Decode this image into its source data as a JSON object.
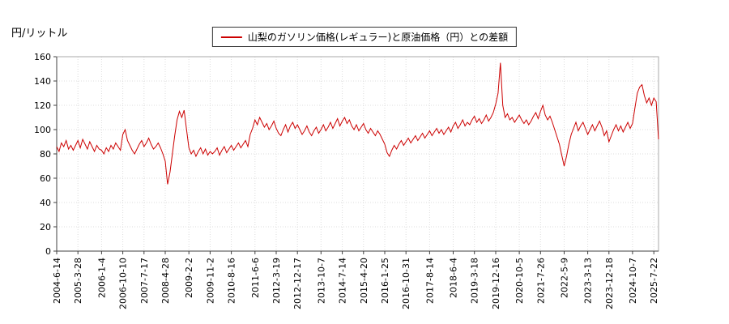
{
  "header": {
    "y_unit_label": "円/リットル",
    "legend_label": "山梨のガソリン価格(レギュラー)と原油価格（円）との差額",
    "legend_line_color": "#cc0000"
  },
  "chart_data": {
    "type": "line",
    "title": "山梨のガソリン価格(レギュラー)と原油価格（円）との差額",
    "ylabel": "円/リットル",
    "xlabel": "",
    "ylim": [
      0,
      160
    ],
    "yticks": [
      0,
      20,
      40,
      60,
      80,
      100,
      120,
      140,
      160
    ],
    "grid": true,
    "legend_position": "top-center",
    "x_ticks": [
      {
        "label": "2004-6-14",
        "index": 0
      },
      {
        "label": "2005-3-28",
        "index": 9
      },
      {
        "label": "2006-1-4",
        "index": 19
      },
      {
        "label": "2006-10-10",
        "index": 28
      },
      {
        "label": "2007-7-17",
        "index": 37
      },
      {
        "label": "2008-4-28",
        "index": 46
      },
      {
        "label": "2009-2-2",
        "index": 56
      },
      {
        "label": "2009-11-2",
        "index": 65
      },
      {
        "label": "2010-8-16",
        "index": 74
      },
      {
        "label": "2011-6-6",
        "index": 84
      },
      {
        "label": "2012-3-19",
        "index": 93
      },
      {
        "label": "2012-12-17",
        "index": 102
      },
      {
        "label": "2013-10-7",
        "index": 112
      },
      {
        "label": "2014-7-14",
        "index": 121
      },
      {
        "label": "2015-4-20",
        "index": 130
      },
      {
        "label": "2016-1-25",
        "index": 139
      },
      {
        "label": "2016-10-31",
        "index": 148
      },
      {
        "label": "2017-8-14",
        "index": 158
      },
      {
        "label": "2018-6-4",
        "index": 168
      },
      {
        "label": "2019-3-18",
        "index": 177
      },
      {
        "label": "2019-12-16",
        "index": 186
      },
      {
        "label": "2020-10-5",
        "index": 196
      },
      {
        "label": "2021-7-26",
        "index": 205
      },
      {
        "label": "2022-5-9",
        "index": 215
      },
      {
        "label": "2023-3-13",
        "index": 225
      },
      {
        "label": "2023-12-18",
        "index": 234
      },
      {
        "label": "2024-10-7",
        "index": 244
      },
      {
        "label": "2025-7-22",
        "index": 253
      }
    ],
    "series": [
      {
        "name": "山梨のガソリン価格(レギュラー)と原油価格（円）との差額",
        "color": "#cc0000",
        "period": "monthly 2004-06 to 2025-09 (approx.)",
        "values": [
          86,
          82,
          89,
          86,
          91,
          84,
          87,
          83,
          87,
          91,
          85,
          92,
          88,
          84,
          90,
          86,
          82,
          87,
          84,
          83,
          80,
          85,
          82,
          87,
          84,
          89,
          86,
          83,
          96,
          100,
          91,
          87,
          83,
          80,
          84,
          88,
          91,
          86,
          89,
          93,
          88,
          84,
          86,
          89,
          85,
          80,
          74,
          55,
          65,
          80,
          95,
          108,
          115,
          110,
          116,
          100,
          85,
          80,
          83,
          78,
          82,
          85,
          80,
          84,
          79,
          82,
          80,
          82,
          85,
          79,
          83,
          86,
          81,
          84,
          87,
          83,
          86,
          89,
          85,
          88,
          91,
          86,
          96,
          101,
          108,
          104,
          110,
          106,
          102,
          105,
          100,
          103,
          107,
          101,
          97,
          95,
          100,
          104,
          98,
          103,
          106,
          101,
          104,
          100,
          96,
          99,
          103,
          98,
          95,
          99,
          102,
          97,
          100,
          104,
          99,
          102,
          106,
          101,
          105,
          109,
          103,
          107,
          110,
          105,
          108,
          103,
          100,
          104,
          99,
          102,
          105,
          100,
          97,
          101,
          98,
          95,
          99,
          96,
          92,
          88,
          81,
          78,
          83,
          87,
          84,
          88,
          91,
          87,
          90,
          93,
          89,
          92,
          95,
          91,
          94,
          97,
          93,
          96,
          99,
          95,
          98,
          101,
          97,
          100,
          96,
          99,
          102,
          98,
          103,
          106,
          101,
          104,
          108,
          103,
          106,
          104,
          108,
          111,
          106,
          109,
          105,
          108,
          112,
          107,
          110,
          114,
          121,
          130,
          155,
          120,
          110,
          113,
          108,
          110,
          106,
          109,
          112,
          108,
          105,
          108,
          104,
          107,
          111,
          114,
          109,
          115,
          120,
          112,
          108,
          111,
          106,
          100,
          94,
          88,
          79,
          70,
          78,
          88,
          96,
          101,
          106,
          99,
          103,
          106,
          101,
          96,
          100,
          104,
          99,
          103,
          107,
          102,
          95,
          99,
          90,
          95,
          100,
          104,
          99,
          103,
          98,
          102,
          106,
          101,
          105,
          118,
          130,
          135,
          137,
          128,
          122,
          126,
          120,
          126,
          123,
          92
        ]
      }
    ]
  }
}
